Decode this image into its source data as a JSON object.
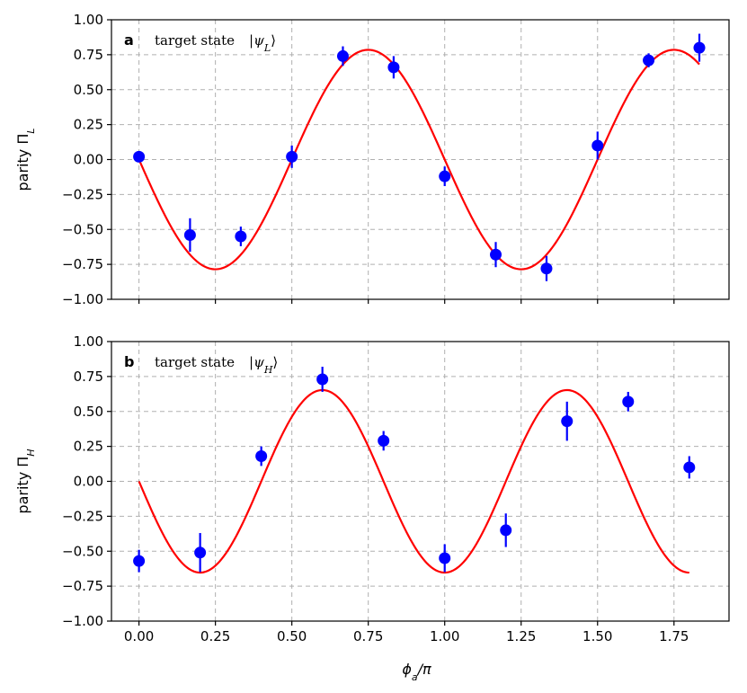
{
  "chart_data": [
    {
      "type": "scatter",
      "panel": "a",
      "annotation_prefix": "target state",
      "annotation_state": "|ψL⟩",
      "ylabel": "parity ΠL",
      "xlabel": "",
      "xlim": [
        -0.09,
        1.93
      ],
      "ylim": [
        -1.0,
        1.0
      ],
      "xticks": [
        0.0,
        0.25,
        0.5,
        0.75,
        1.0,
        1.25,
        1.5,
        1.75
      ],
      "yticks": [
        -1.0,
        -0.75,
        -0.5,
        -0.25,
        0.0,
        0.25,
        0.5,
        0.75,
        1.0
      ],
      "ytick_labels": [
        "−1.00",
        "−0.75",
        "−0.50",
        "−0.25",
        "0.00",
        "0.25",
        "0.50",
        "0.75",
        "1.00"
      ],
      "show_xtick_labels": false,
      "grid": true,
      "points": [
        {
          "x": 0.0,
          "y": 0.02,
          "err": 0.03
        },
        {
          "x": 0.167,
          "y": -0.54,
          "err": 0.12
        },
        {
          "x": 0.333,
          "y": -0.55,
          "err": 0.07
        },
        {
          "x": 0.5,
          "y": 0.02,
          "err": 0.08
        },
        {
          "x": 0.667,
          "y": 0.74,
          "err": 0.07
        },
        {
          "x": 0.833,
          "y": 0.66,
          "err": 0.08
        },
        {
          "x": 1.0,
          "y": -0.12,
          "err": 0.07
        },
        {
          "x": 1.167,
          "y": -0.68,
          "err": 0.09
        },
        {
          "x": 1.333,
          "y": -0.78,
          "err": 0.09
        },
        {
          "x": 1.5,
          "y": 0.1,
          "err": 0.1
        },
        {
          "x": 1.667,
          "y": 0.71,
          "err": 0.05
        },
        {
          "x": 1.833,
          "y": 0.8,
          "err": 0.1
        }
      ],
      "fit": {
        "function": "A*sin(phase*pi - offset)",
        "amplitude": -0.785,
        "frequency": 2.0,
        "offset": 0.0,
        "x_range": [
          0.0,
          1.833
        ]
      },
      "point_color": "#0000ff",
      "fit_color": "#ff0000"
    },
    {
      "type": "scatter",
      "panel": "b",
      "annotation_prefix": "target state",
      "annotation_state": "|ψH⟩",
      "ylabel": "parity ΠH",
      "xlabel": "ϕa/π",
      "xlim": [
        -0.09,
        1.93
      ],
      "ylim": [
        -1.0,
        1.0
      ],
      "xticks": [
        0.0,
        0.25,
        0.5,
        0.75,
        1.0,
        1.25,
        1.5,
        1.75
      ],
      "xtick_labels": [
        "0.00",
        "0.25",
        "0.50",
        "0.75",
        "1.00",
        "1.25",
        "1.50",
        "1.75"
      ],
      "yticks": [
        -1.0,
        -0.75,
        -0.5,
        -0.25,
        0.0,
        0.25,
        0.5,
        0.75,
        1.0
      ],
      "ytick_labels": [
        "−1.00",
        "−0.75",
        "−0.50",
        "−0.25",
        "0.00",
        "0.25",
        "0.50",
        "0.75",
        "1.00"
      ],
      "show_xtick_labels": true,
      "grid": true,
      "points": [
        {
          "x": 0.0,
          "y": -0.57,
          "err": 0.08
        },
        {
          "x": 0.2,
          "y": -0.51,
          "err": 0.14
        },
        {
          "x": 0.4,
          "y": 0.18,
          "err": 0.07
        },
        {
          "x": 0.6,
          "y": 0.73,
          "err": 0.09
        },
        {
          "x": 0.8,
          "y": 0.29,
          "err": 0.07
        },
        {
          "x": 1.0,
          "y": -0.55,
          "err": 0.1
        },
        {
          "x": 1.2,
          "y": -0.35,
          "err": 0.12
        },
        {
          "x": 1.4,
          "y": 0.43,
          "err": 0.14
        },
        {
          "x": 1.6,
          "y": 0.57,
          "err": 0.07
        },
        {
          "x": 1.8,
          "y": 0.1,
          "err": 0.08
        }
      ],
      "fit": {
        "function": "A*sin(phase*pi - offset)",
        "amplitude": -0.653,
        "frequency": 2.5,
        "offset": 0.0,
        "x_range": [
          0.0,
          1.8
        ]
      },
      "point_color": "#0000ff",
      "fit_color": "#ff0000"
    }
  ]
}
